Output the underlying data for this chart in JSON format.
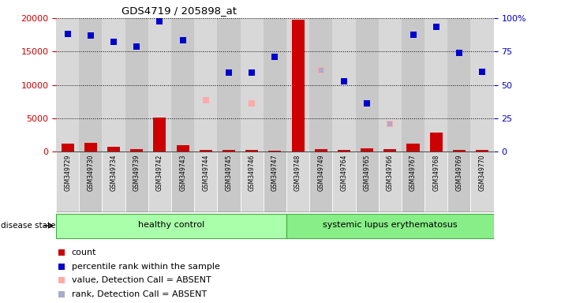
{
  "title": "GDS4719 / 205898_at",
  "samples": [
    "GSM349729",
    "GSM349730",
    "GSM349734",
    "GSM349739",
    "GSM349742",
    "GSM349743",
    "GSM349744",
    "GSM349745",
    "GSM349746",
    "GSM349747",
    "GSM349748",
    "GSM349749",
    "GSM349764",
    "GSM349765",
    "GSM349766",
    "GSM349767",
    "GSM349768",
    "GSM349769",
    "GSM349770"
  ],
  "n_healthy": 10,
  "n_sle": 9,
  "count_values": [
    1200,
    1300,
    700,
    400,
    5100,
    900,
    200,
    200,
    200,
    150,
    19800,
    350,
    250,
    450,
    350,
    1200,
    2900,
    200,
    200
  ],
  "percentile_rank": [
    17600,
    17400,
    16500,
    15700,
    19500,
    16700,
    null,
    11800,
    11800,
    14200,
    null,
    null,
    10500,
    7200,
    null,
    17500,
    18700,
    14800,
    12000
  ],
  "value_absent": [
    null,
    null,
    null,
    null,
    null,
    null,
    7700,
    null,
    7200,
    null,
    null,
    12200,
    null,
    null,
    4100,
    null,
    null,
    null,
    null
  ],
  "rank_absent": [
    null,
    null,
    null,
    null,
    null,
    null,
    null,
    null,
    null,
    null,
    null,
    12200,
    null,
    null,
    4100,
    null,
    null,
    null,
    null
  ],
  "ylim_left": [
    0,
    20000
  ],
  "ylim_right": [
    0,
    100
  ],
  "yticks_left": [
    0,
    5000,
    10000,
    15000,
    20000
  ],
  "yticks_right": [
    0,
    25,
    50,
    75,
    100
  ],
  "left_tick_color": "#cc0000",
  "right_tick_color": "#0000cc",
  "bar_color": "#cc0000",
  "dot_blue_color": "#0000cc",
  "dot_pink_color": "#ffaaaa",
  "dot_lavender_color": "#aaaacc",
  "healthy_color": "#aaffaa",
  "sle_color": "#88ee88",
  "column_bg_even": "#d8d8d8",
  "column_bg_odd": "#c8c8c8",
  "disease_label": "disease state",
  "healthy_label": "healthy control",
  "sle_label": "systemic lupus erythematosus",
  "legend_items": [
    {
      "label": "count",
      "color": "#cc0000"
    },
    {
      "label": "percentile rank within the sample",
      "color": "#0000cc"
    },
    {
      "label": "value, Detection Call = ABSENT",
      "color": "#ffaaaa"
    },
    {
      "label": "rank, Detection Call = ABSENT",
      "color": "#aaaacc"
    }
  ]
}
